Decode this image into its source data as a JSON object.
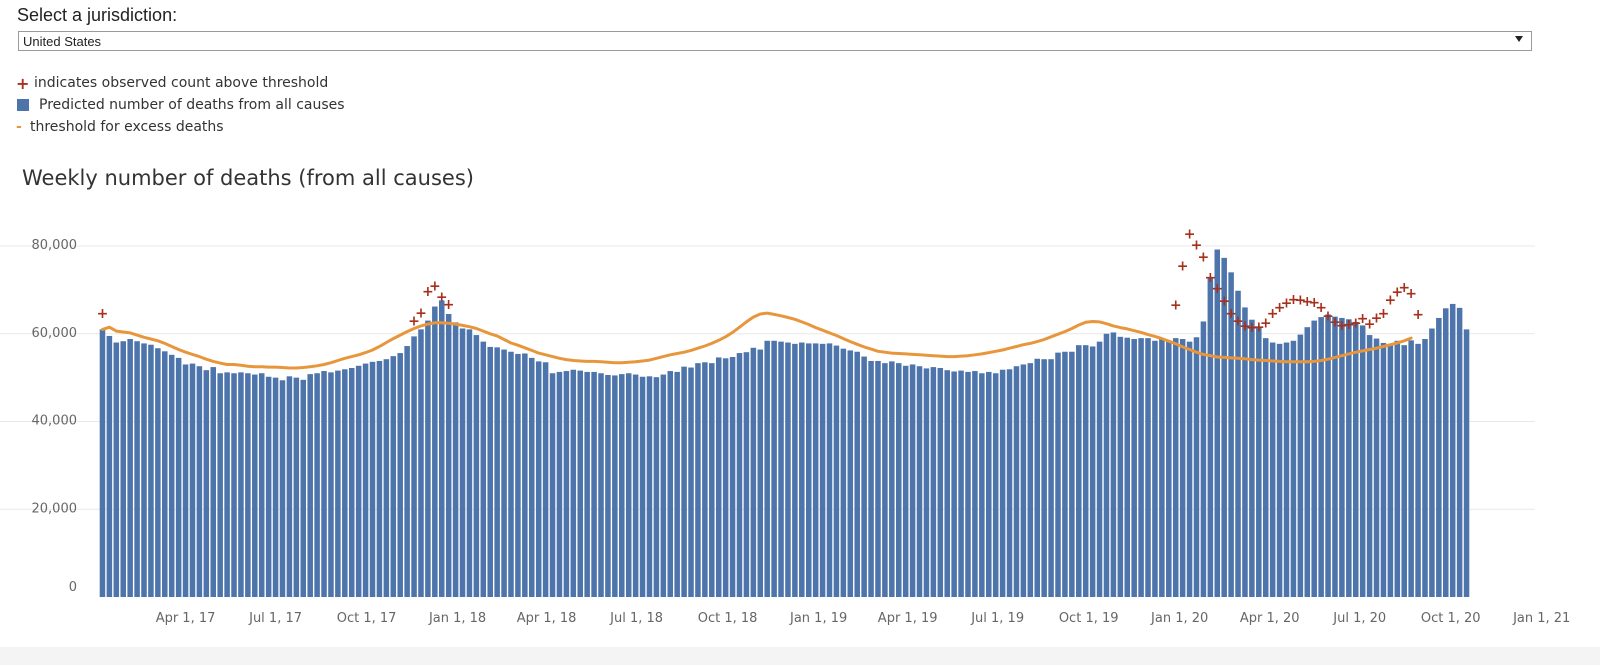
{
  "selector": {
    "label": "Select a jurisdiction:",
    "value": "United States"
  },
  "legend": {
    "above_threshold": "indicates observed count above threshold",
    "predicted": "Predicted number of deaths from all causes",
    "threshold": "threshold for excess deaths"
  },
  "colors": {
    "bar": "#4e75ab",
    "threshold": "#e8963c",
    "above_marker": "#a5301c",
    "grid": "#e8e8e8",
    "axis_text": "#666666"
  },
  "chart_data": {
    "type": "bar",
    "title": "Weekly number of deaths (from all causes)",
    "xlabel": "",
    "ylabel": "",
    "ylim": [
      0,
      80000
    ],
    "yticks": [
      0,
      20000,
      40000,
      60000,
      80000
    ],
    "ytick_labels": [
      "0",
      "20,000",
      "40,000",
      "60,000",
      "80,000"
    ],
    "xtick_labels": [
      "Apr 1, 17",
      "Jul 1, 17",
      "Oct 1, 17",
      "Jan 1, 18",
      "Apr 1, 18",
      "Jul 1, 18",
      "Oct 1, 18",
      "Jan 1, 19",
      "Apr 1, 19",
      "Jul 1, 19",
      "Oct 1, 19",
      "Jan 1, 20",
      "Apr 1, 20",
      "Jul 1, 20",
      "Oct 1, 20",
      "Jan 1, 21"
    ],
    "x_start": "Jan 7, 17",
    "x_end": "Jan 1, 21",
    "week_interval_days": 7,
    "grid": true,
    "series": [
      {
        "name": "Predicted number of deaths from all causes",
        "type": "bar",
        "values": [
          61000,
          59500,
          58000,
          58300,
          58800,
          58300,
          57800,
          57500,
          56700,
          56000,
          55200,
          54500,
          53000,
          53200,
          52600,
          51700,
          52400,
          51000,
          51200,
          51000,
          51200,
          51000,
          50700,
          51000,
          50200,
          50000,
          49400,
          50300,
          50000,
          49500,
          50800,
          51000,
          51500,
          51200,
          51600,
          51900,
          52200,
          52700,
          53200,
          53600,
          53800,
          54200,
          54900,
          55600,
          57200,
          59400,
          61000,
          63000,
          66200,
          67600,
          64500,
          62600,
          61200,
          61000,
          59700,
          58200,
          57000,
          56900,
          56400,
          55900,
          55400,
          55500,
          54500,
          53700,
          53500,
          51000,
          51300,
          51500,
          51800,
          51600,
          51300,
          51300,
          51000,
          50600,
          50500,
          50800,
          51000,
          50700,
          50200,
          50300,
          50100,
          50700,
          51500,
          51300,
          52500,
          52300,
          53300,
          53500,
          53300,
          54600,
          54400,
          54700,
          55600,
          55800,
          56800,
          56400,
          58400,
          58400,
          58200,
          58000,
          57700,
          58000,
          57800,
          57800,
          57700,
          57800,
          57300,
          56600,
          56200,
          55900,
          54800,
          53800,
          53800,
          53300,
          53700,
          53300,
          52700,
          53000,
          52600,
          52100,
          52400,
          52200,
          51700,
          51400,
          51600,
          51300,
          51500,
          51000,
          51300,
          51000,
          51800,
          51900,
          52600,
          53000,
          53300,
          54300,
          54200,
          54200,
          55700,
          55900,
          55900,
          57400,
          57400,
          57100,
          58200,
          60000,
          60300,
          59300,
          59100,
          58800,
          59000,
          59000,
          58400,
          58900,
          58400,
          59000,
          58800,
          58200,
          59200,
          62800,
          72900,
          79200,
          77300,
          74000,
          69800,
          66000,
          63200,
          61400,
          59000,
          58000,
          57700,
          58000,
          58400,
          59800,
          61500,
          63000,
          63800,
          64400,
          63900,
          63600,
          63300,
          62700,
          61900,
          59700,
          58900,
          57900,
          57500,
          58400,
          57400,
          58500,
          57700,
          58800,
          61200,
          63600,
          65800,
          66800,
          65900,
          61000
        ]
      },
      {
        "name": "threshold for excess deaths",
        "type": "line",
        "values": [
          61000,
          61500,
          60600,
          60400,
          60200,
          59700,
          59200,
          58800,
          58400,
          57800,
          57100,
          56400,
          55800,
          55300,
          54800,
          54200,
          53700,
          53300,
          53000,
          53000,
          52800,
          52600,
          52500,
          52500,
          52400,
          52400,
          52300,
          52200,
          52200,
          52300,
          52500,
          52700,
          53000,
          53400,
          53900,
          54400,
          54800,
          55200,
          55700,
          56300,
          57100,
          58000,
          58900,
          59700,
          60500,
          61200,
          61800,
          62200,
          62500,
          62500,
          62400,
          62200,
          61900,
          61600,
          61200,
          60600,
          60000,
          59500,
          58700,
          57900,
          57400,
          56800,
          56200,
          55600,
          55200,
          54800,
          54400,
          54100,
          53900,
          53800,
          53700,
          53700,
          53600,
          53500,
          53400,
          53400,
          53500,
          53600,
          53800,
          54000,
          54400,
          54800,
          55200,
          55500,
          55800,
          56200,
          56700,
          57200,
          57800,
          58500,
          59300,
          60300,
          61500,
          62700,
          63800,
          64500,
          64700,
          64400,
          64100,
          63700,
          63300,
          62700,
          62100,
          61400,
          60800,
          60200,
          59600,
          58900,
          58200,
          57600,
          57000,
          56500,
          56000,
          55800,
          55600,
          55500,
          55400,
          55300,
          55200,
          55100,
          55000,
          54900,
          54800,
          54800,
          54900,
          55000,
          55200,
          55400,
          55700,
          56000,
          56300,
          56700,
          57100,
          57500,
          57800,
          58200,
          58700,
          59300,
          59900,
          60500,
          61200,
          62000,
          62600,
          62800,
          62700,
          62300,
          61800,
          61400,
          61100,
          60700,
          60300,
          59800,
          59400,
          58900,
          58300,
          57700,
          57000,
          56400,
          55800,
          55300,
          55000,
          54700,
          54600,
          54500,
          54400,
          54300,
          54100,
          54000,
          53900,
          53800,
          53700,
          53600,
          53600,
          53600,
          53600,
          53700,
          53900,
          54200,
          54600,
          55000,
          55400,
          55800,
          56100,
          56400,
          56700,
          57100,
          57500,
          57900,
          58400,
          59000
        ],
        "start_index": 0
      }
    ],
    "above_threshold_points": [
      {
        "week_index": 0,
        "value": 64700
      },
      {
        "week_index": 45,
        "value": 63000
      },
      {
        "week_index": 46,
        "value": 64800
      },
      {
        "week_index": 47,
        "value": 69700
      },
      {
        "week_index": 48,
        "value": 71000
      },
      {
        "week_index": 49,
        "value": 68500
      },
      {
        "week_index": 50,
        "value": 66800
      },
      {
        "week_index": 155,
        "value": 66700
      },
      {
        "week_index": 156,
        "value": 75600
      },
      {
        "week_index": 157,
        "value": 82800
      },
      {
        "week_index": 158,
        "value": 80300
      },
      {
        "week_index": 159,
        "value": 77600
      },
      {
        "week_index": 160,
        "value": 72900
      },
      {
        "week_index": 161,
        "value": 70400
      },
      {
        "week_index": 162,
        "value": 67600
      },
      {
        "week_index": 163,
        "value": 64700
      },
      {
        "week_index": 164,
        "value": 63000
      },
      {
        "week_index": 165,
        "value": 61900
      },
      {
        "week_index": 166,
        "value": 61500
      },
      {
        "week_index": 167,
        "value": 61700
      },
      {
        "week_index": 168,
        "value": 62600
      },
      {
        "week_index": 169,
        "value": 64700
      },
      {
        "week_index": 170,
        "value": 66100
      },
      {
        "week_index": 171,
        "value": 67100
      },
      {
        "week_index": 172,
        "value": 67900
      },
      {
        "week_index": 173,
        "value": 67800
      },
      {
        "week_index": 174,
        "value": 67500
      },
      {
        "week_index": 175,
        "value": 67200
      },
      {
        "week_index": 176,
        "value": 66100
      },
      {
        "week_index": 177,
        "value": 64200
      },
      {
        "week_index": 178,
        "value": 62800
      },
      {
        "week_index": 179,
        "value": 62000
      },
      {
        "week_index": 180,
        "value": 62200
      },
      {
        "week_index": 181,
        "value": 62600
      },
      {
        "week_index": 182,
        "value": 63600
      },
      {
        "week_index": 183,
        "value": 62300
      },
      {
        "week_index": 184,
        "value": 63700
      },
      {
        "week_index": 185,
        "value": 64700
      },
      {
        "week_index": 186,
        "value": 67800
      },
      {
        "week_index": 187,
        "value": 69600
      },
      {
        "week_index": 188,
        "value": 70700
      },
      {
        "week_index": 189,
        "value": 69300
      },
      {
        "week_index": 190,
        "value": 64500
      }
    ]
  }
}
